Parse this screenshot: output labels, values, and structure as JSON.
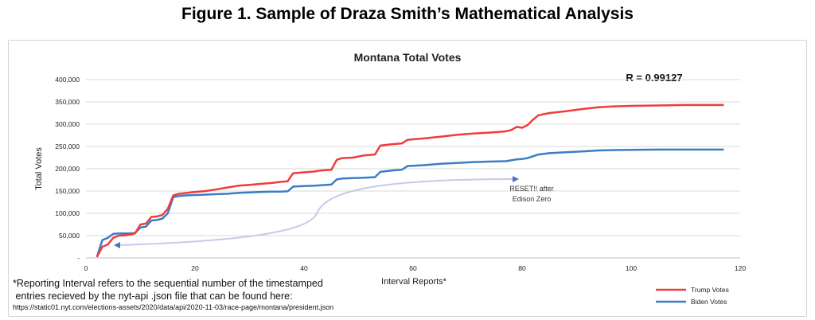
{
  "figure_title": "Figure 1. Sample of Draza Smith’s Mathematical Analysis",
  "footnote": {
    "line1": "*Reporting Interval refers to the sequential number of the timestamped",
    "line2": " entries recieved by the nyt-api .json file that can be found here:",
    "url": "https://static01.nyt.com/elections-assets/2020/data/api/2020-11-03/race-page/montana/president.json"
  },
  "colors": {
    "trump": "#f03c3c",
    "biden": "#3b7dc4",
    "annotation": "#c5cbe8",
    "grid": "#d9d9d9"
  },
  "chart_data": {
    "type": "line",
    "title": "Montana Total Votes",
    "xlabel": "Interval Reports*",
    "ylabel": "Total Votes",
    "xlim": [
      0,
      120
    ],
    "ylim": [
      0,
      400000
    ],
    "x_ticks": [
      "0",
      "20",
      "40",
      "60",
      "80",
      "100",
      "120"
    ],
    "y_ticks": [
      "-",
      "50,000",
      "100,000",
      "150,000",
      "200,000",
      "250,000",
      "300,000",
      "350,000",
      "400,000"
    ],
    "r_label": "R = 0.99127",
    "annotation": [
      "RESET!! after",
      "Edison Zero"
    ],
    "series": [
      {
        "name": "Trump Votes",
        "x": [
          2,
          3,
          4,
          5,
          6,
          7,
          8,
          9,
          10,
          11,
          12,
          13,
          14,
          15,
          16,
          17,
          18,
          20,
          22,
          24,
          26,
          28,
          30,
          32,
          34,
          36,
          37,
          38,
          40,
          42,
          43,
          44,
          45,
          46,
          47,
          49,
          51,
          53,
          54,
          56,
          58,
          59,
          62,
          65,
          68,
          71,
          74,
          77,
          78,
          79,
          80,
          81,
          82,
          83,
          85,
          88,
          91,
          94,
          97,
          100,
          105,
          110,
          117
        ],
        "values": [
          2000,
          25000,
          30000,
          45000,
          50000,
          50500,
          52000,
          55000,
          75000,
          77000,
          92000,
          93000,
          96000,
          110000,
          140000,
          144000,
          145000,
          148000,
          150000,
          154000,
          158000,
          162000,
          164000,
          166000,
          168000,
          171000,
          172000,
          190000,
          192000,
          194000,
          196000,
          197000,
          197500,
          220000,
          224000,
          225000,
          230000,
          232000,
          252000,
          255000,
          257000,
          265000,
          268000,
          272000,
          276000,
          279000,
          281000,
          284000,
          287000,
          294000,
          292000,
          298000,
          310000,
          320000,
          325000,
          329000,
          334000,
          338000,
          340000,
          341000,
          342000,
          343000,
          343000
        ]
      },
      {
        "name": "Biden Votes",
        "x": [
          2,
          3,
          4,
          5,
          6,
          7,
          8,
          9,
          10,
          11,
          12,
          13,
          14,
          15,
          16,
          17,
          18,
          20,
          22,
          24,
          26,
          28,
          30,
          32,
          34,
          36,
          37,
          38,
          40,
          42,
          43,
          44,
          45,
          46,
          47,
          49,
          51,
          53,
          54,
          56,
          58,
          59,
          62,
          65,
          68,
          71,
          74,
          77,
          78,
          79,
          80,
          81,
          82,
          83,
          85,
          88,
          91,
          94,
          97,
          100,
          105,
          110,
          117
        ],
        "values": [
          2000,
          40000,
          45000,
          54000,
          55000,
          55000,
          55000,
          56000,
          68000,
          70000,
          84000,
          85000,
          88000,
          100000,
          136000,
          139000,
          140000,
          141000,
          142000,
          143000,
          144000,
          146000,
          147000,
          148000,
          148500,
          149000,
          149500,
          160000,
          161000,
          162000,
          163000,
          164000,
          164500,
          176000,
          178000,
          179000,
          180000,
          181000,
          193000,
          196000,
          198000,
          206000,
          208000,
          211000,
          213000,
          215000,
          216000,
          217000,
          219000,
          221000,
          222000,
          224000,
          228000,
          232000,
          235000,
          237000,
          239000,
          241000,
          242000,
          242500,
          243000,
          243000,
          243000
        ]
      }
    ]
  }
}
